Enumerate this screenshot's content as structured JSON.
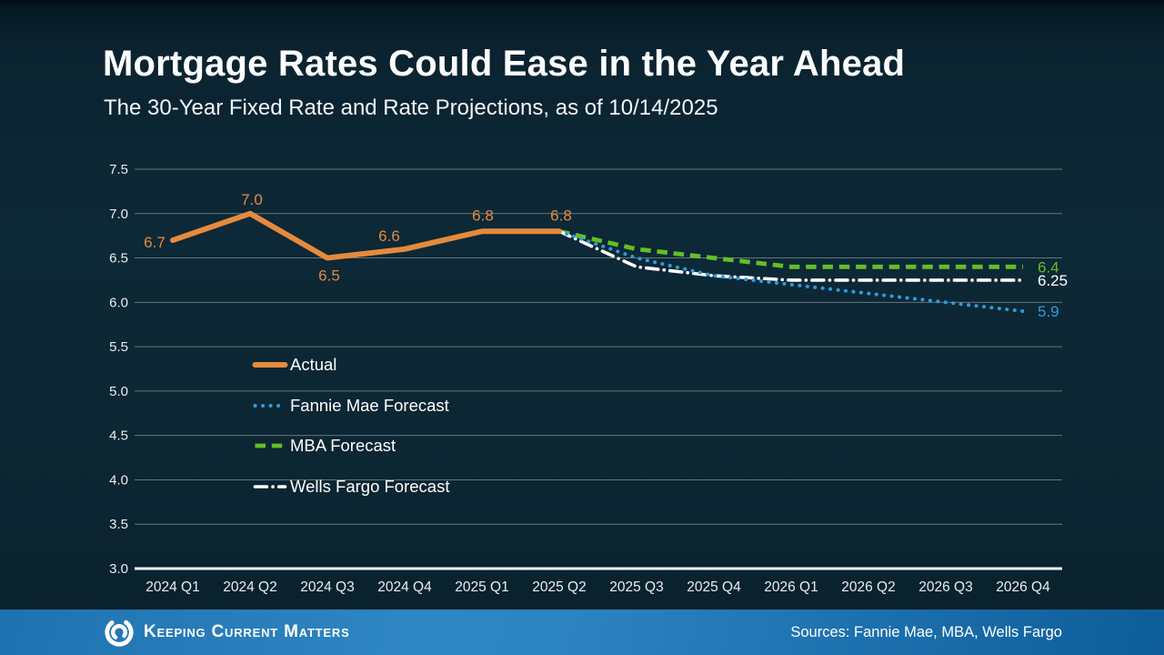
{
  "header": {
    "title": "Mortgage Rates Could Ease in the Year Ahead",
    "subtitle": "The 30-Year Fixed Rate and Rate Projections, as of 10/14/2025"
  },
  "footer": {
    "brand": "Keeping Current Matters",
    "sources": "Sources: Fannie Mae, MBA, Wells Fargo"
  },
  "colors": {
    "actual": "#E58A3D",
    "fannie_mae": "#2E9CD9",
    "mba": "#63BE27",
    "wells_fargo": "#FFFFFF",
    "gridline": "#66757d",
    "axis_line": "#f2f6f8",
    "tick_label": "#e8eef1",
    "footer_blue": "#2e86c3",
    "background": "#0c2633"
  },
  "chart_data": {
    "type": "line",
    "title": "Mortgage Rates Could Ease in the Year Ahead",
    "subtitle": "The 30-Year Fixed Rate and Rate Projections, as of 10/14/2025",
    "categories": [
      "2024 Q1",
      "2024 Q2",
      "2024 Q3",
      "2024 Q4",
      "2025 Q1",
      "2025 Q2",
      "2025 Q3",
      "2025 Q4",
      "2026 Q1",
      "2026 Q2",
      "2026 Q3",
      "2026 Q4"
    ],
    "ylim": [
      3.0,
      7.5
    ],
    "ytick_step": 0.5,
    "grid": true,
    "legend_position": "inside-left",
    "series": [
      {
        "name": "Actual",
        "style": "solid",
        "color": "#E58A3D",
        "start_index": 0,
        "values": [
          6.7,
          7.0,
          6.5,
          6.6,
          6.8,
          6.8
        ],
        "point_labels": [
          "6.7",
          "7.0",
          "6.5",
          "6.6",
          "6.8",
          "6.8"
        ]
      },
      {
        "name": "Fannie Mae Forecast",
        "style": "dotted",
        "color": "#2E9CD9",
        "start_index": 5,
        "values": [
          6.8,
          6.5,
          6.3,
          6.2,
          6.1,
          6.0,
          5.9
        ],
        "end_label": "5.9"
      },
      {
        "name": "MBA Forecast",
        "style": "dashed",
        "color": "#63BE27",
        "start_index": 5,
        "values": [
          6.8,
          6.6,
          6.5,
          6.4,
          6.4,
          6.4,
          6.4
        ],
        "end_label": "6.4"
      },
      {
        "name": "Wells Fargo Forecast",
        "style": "dashdot",
        "color": "#FFFFFF",
        "start_index": 5,
        "values": [
          6.8,
          6.4,
          6.3,
          6.25,
          6.25,
          6.25,
          6.25
        ],
        "end_label": "6.25"
      }
    ]
  }
}
